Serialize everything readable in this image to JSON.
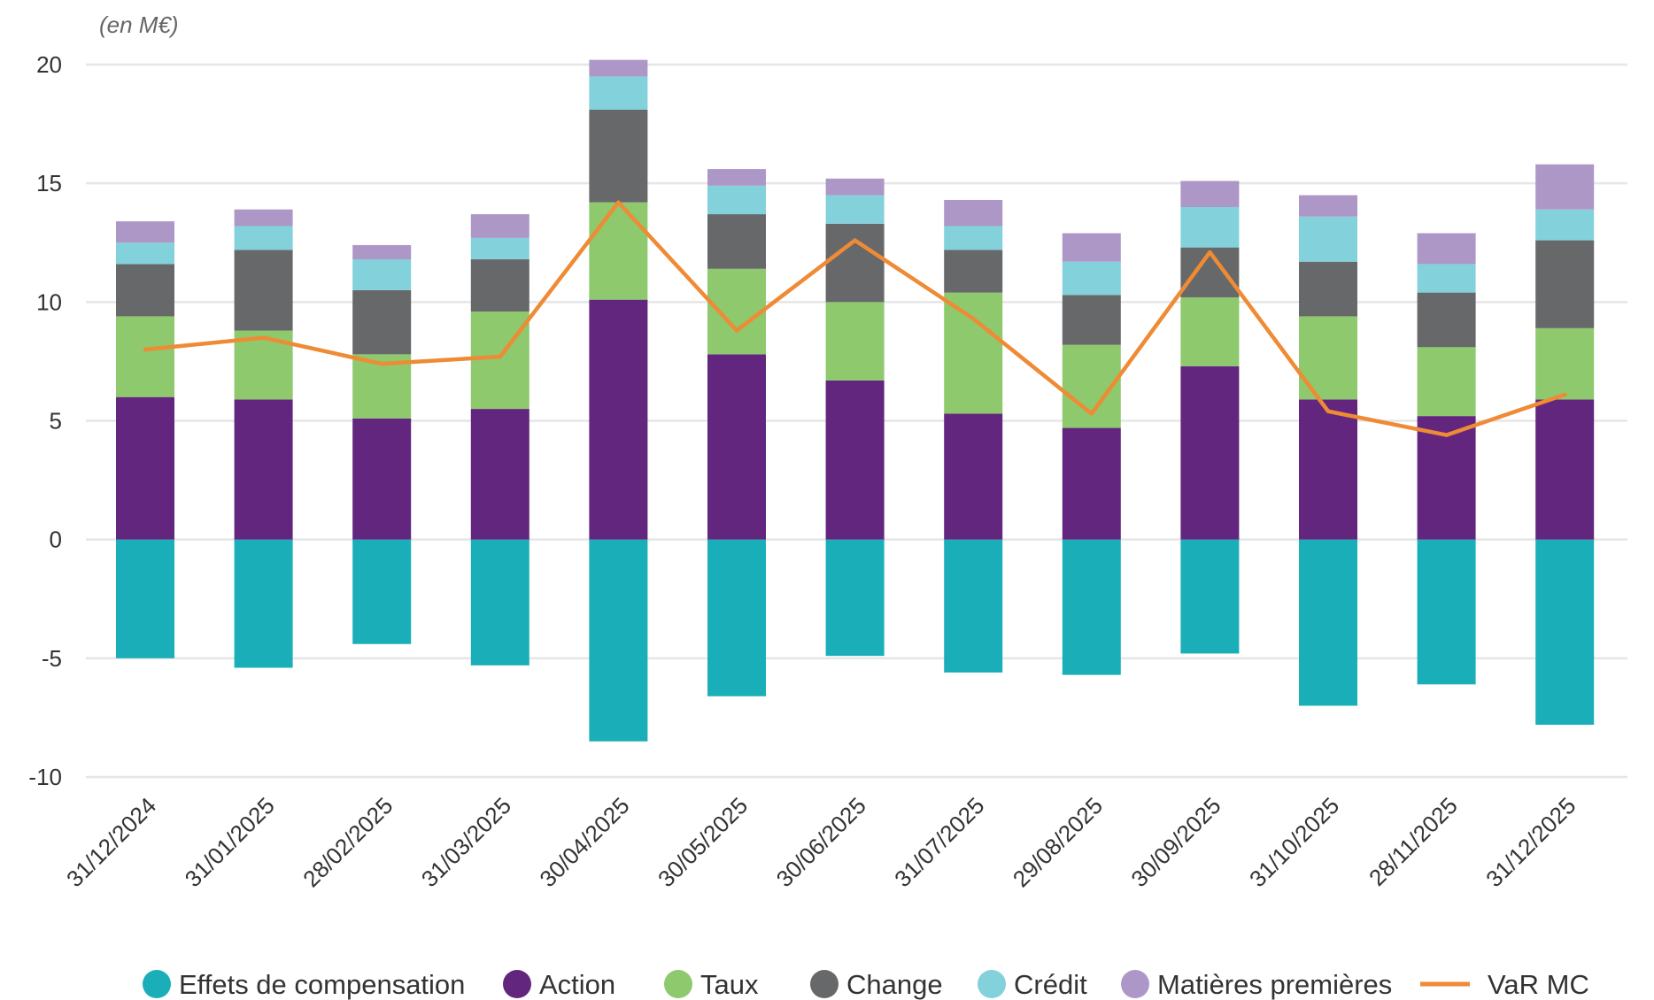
{
  "chart_data": {
    "type": "bar",
    "stacked": true,
    "unit_label": "(en M€)",
    "categories": [
      "31/12/2024",
      "31/01/2025",
      "28/02/2025",
      "31/03/2025",
      "30/04/2025",
      "30/05/2025",
      "30/06/2025",
      "31/07/2025",
      "29/08/2025",
      "30/09/2025",
      "31/10/2025",
      "28/11/2025",
      "31/12/2025"
    ],
    "ylim": [
      -10,
      20
    ],
    "yticks": [
      20,
      15,
      10,
      5,
      0,
      -5,
      -10
    ],
    "grid": true,
    "legend_position": "bottom",
    "series": [
      {
        "name": "Effets de compensation",
        "color": "#1aafb8",
        "values": [
          -5.0,
          -5.4,
          -4.4,
          -5.3,
          -8.5,
          -6.6,
          -4.9,
          -5.6,
          -5.7,
          -4.8,
          -7.0,
          -6.1,
          -7.8
        ]
      },
      {
        "name": "Action",
        "color": "#62267e",
        "values": [
          6.0,
          5.9,
          5.1,
          5.5,
          10.1,
          7.8,
          6.7,
          5.3,
          4.7,
          7.3,
          5.9,
          5.2,
          5.9
        ]
      },
      {
        "name": "Taux",
        "color": "#8ec96e",
        "values": [
          3.4,
          2.9,
          2.7,
          4.1,
          4.1,
          3.6,
          3.3,
          5.1,
          3.5,
          2.9,
          3.5,
          2.9,
          3.0
        ]
      },
      {
        "name": "Change",
        "color": "#676869",
        "values": [
          2.2,
          3.4,
          2.7,
          2.2,
          3.9,
          2.3,
          3.3,
          1.8,
          2.1,
          2.1,
          2.3,
          2.3,
          3.7
        ]
      },
      {
        "name": "Crédit",
        "color": "#82d1db",
        "values": [
          0.9,
          1.0,
          1.3,
          0.9,
          1.4,
          1.2,
          1.2,
          1.0,
          1.4,
          1.7,
          1.9,
          1.2,
          1.3
        ]
      },
      {
        "name": "Matières premières",
        "color": "#ad97c7",
        "values": [
          0.9,
          0.7,
          0.6,
          1.0,
          0.7,
          0.7,
          0.7,
          1.1,
          1.2,
          1.1,
          0.9,
          1.3,
          1.9
        ]
      }
    ],
    "line_series": {
      "name": "VaR MC",
      "color": "#ef8a35",
      "values": [
        8.0,
        8.5,
        7.4,
        7.7,
        14.2,
        8.8,
        12.6,
        9.3,
        5.3,
        12.1,
        5.4,
        4.4,
        6.1
      ]
    }
  }
}
